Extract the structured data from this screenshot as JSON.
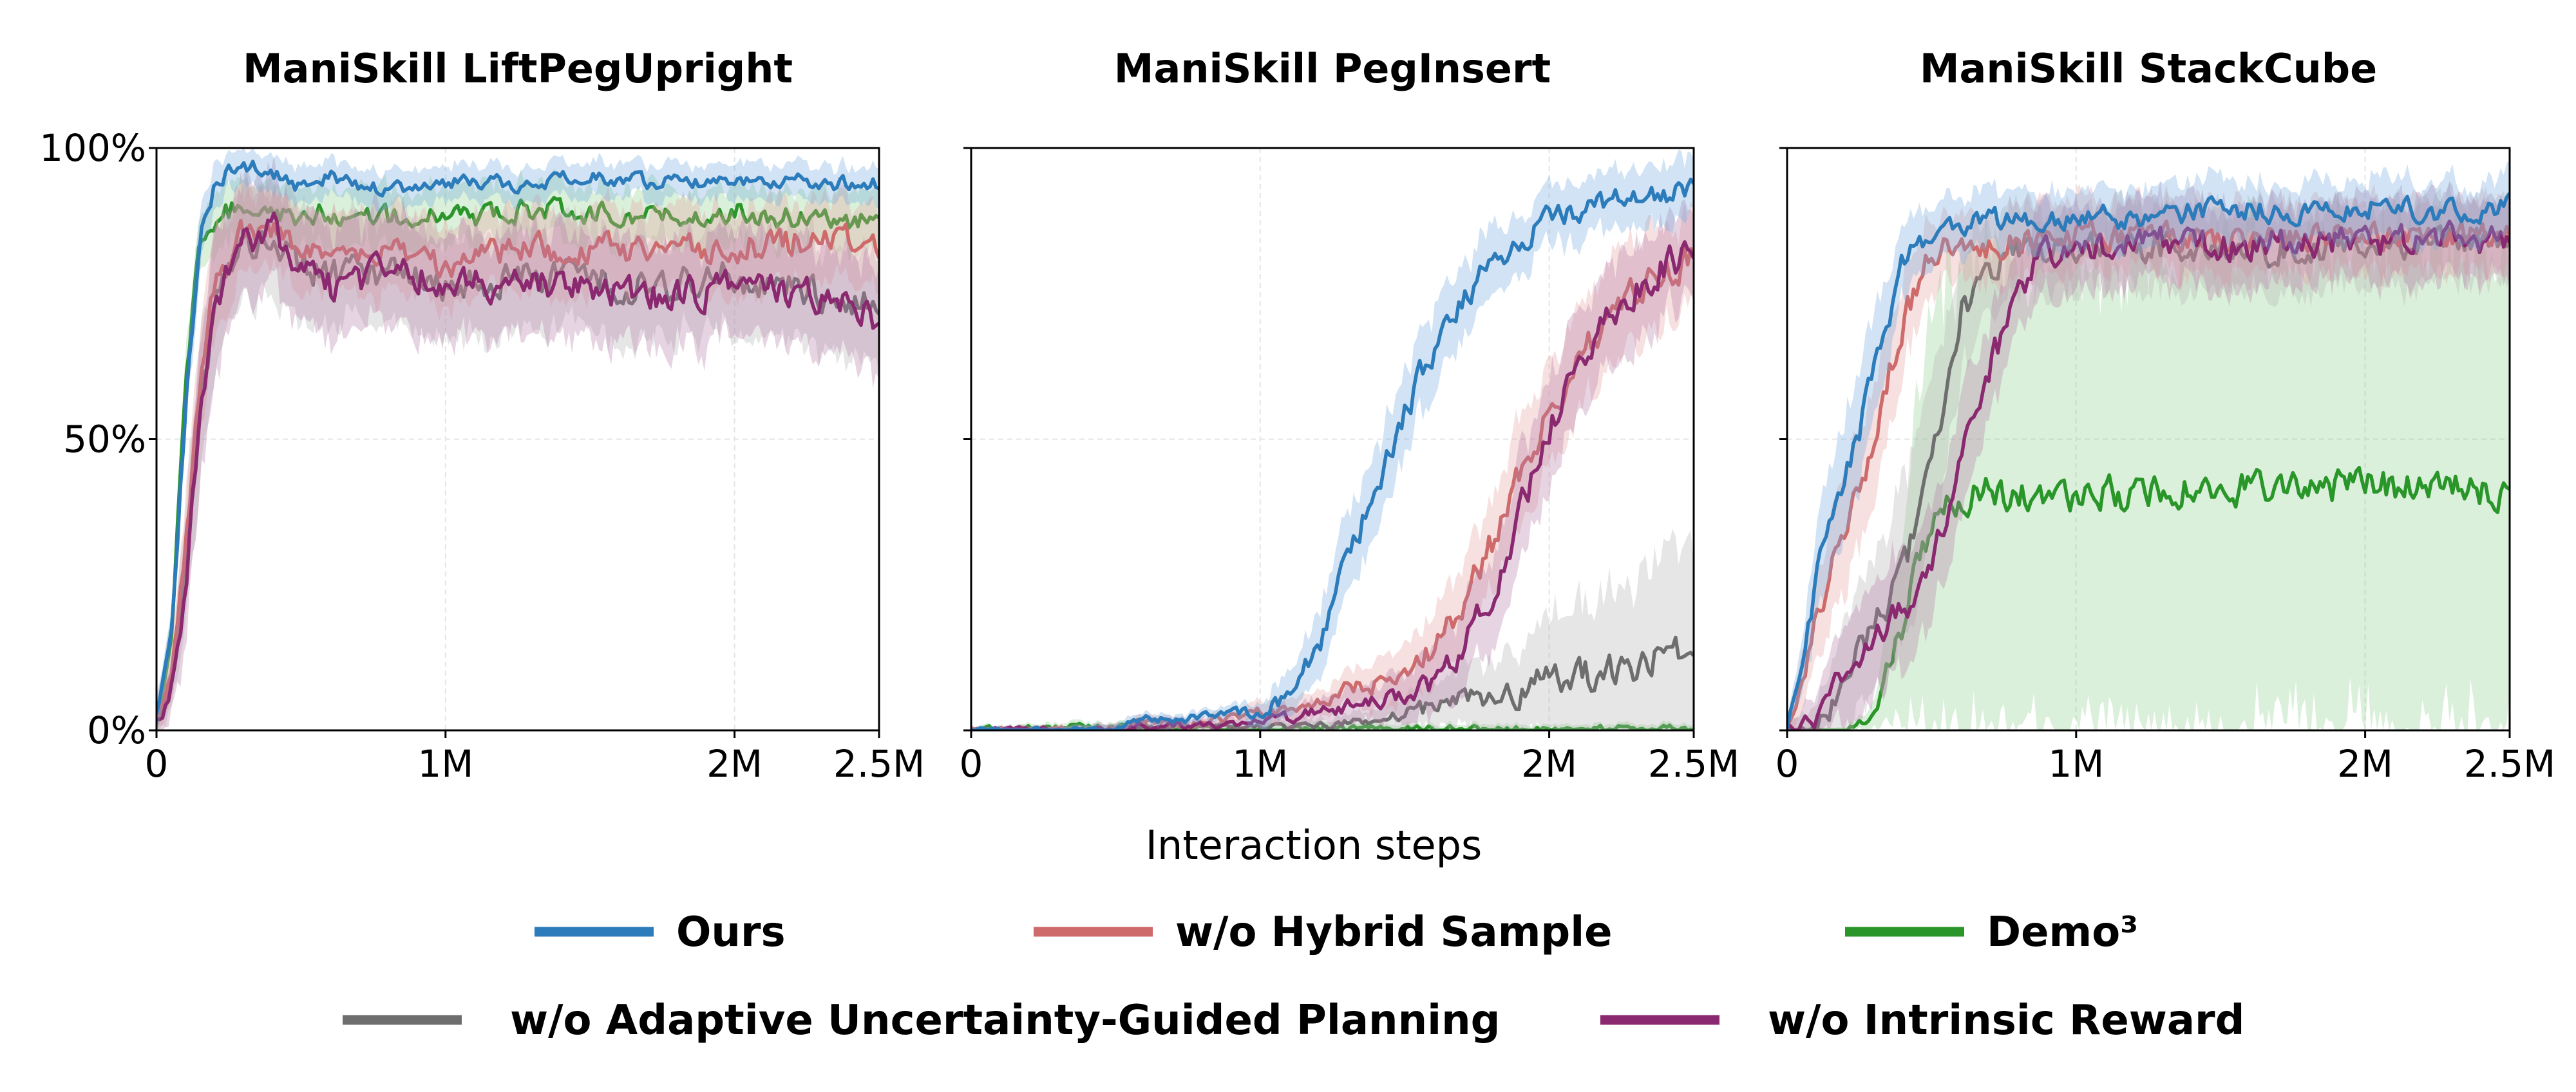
{
  "chart_data": [
    {
      "type": "line",
      "title": "ManiSkill LiftPegUpright",
      "xlabel": "",
      "ylabel": "",
      "xlim": [
        0,
        2.5
      ],
      "ylim": [
        0,
        100
      ],
      "x_ticks": [
        "0",
        "1M",
        "2M",
        "2.5M"
      ],
      "y_ticks": [
        "0%",
        "50%",
        "100%"
      ],
      "grid": true,
      "x": [
        0,
        0.05,
        0.1,
        0.15,
        0.2,
        0.25,
        0.3,
        0.4,
        0.5,
        0.6,
        0.75,
        1.0,
        1.25,
        1.5,
        1.75,
        2.0,
        2.25,
        2.5
      ],
      "series": [
        {
          "name": "Ours",
          "values": [
            2,
            15,
            55,
            85,
            94,
            96,
            97,
            96,
            93,
            95,
            93,
            94,
            94,
            95,
            94,
            95,
            94,
            94
          ],
          "band": [
            3,
            3,
            5,
            5,
            4,
            3,
            3,
            3,
            3,
            3,
            3,
            3,
            3,
            3,
            3,
            3,
            3,
            3
          ]
        },
        {
          "name": "w/o Hybrid Sample",
          "values": [
            2,
            8,
            30,
            60,
            75,
            80,
            85,
            86,
            82,
            81,
            82,
            80,
            82,
            83,
            82,
            83,
            84,
            84
          ],
          "band": [
            3,
            4,
            8,
            10,
            9,
            8,
            7,
            6,
            7,
            7,
            7,
            7,
            7,
            7,
            7,
            7,
            7,
            7
          ]
        },
        {
          "name": "Demo³",
          "values": [
            2,
            15,
            58,
            84,
            88,
            89,
            91,
            90,
            88,
            89,
            88,
            88,
            89,
            89,
            89,
            89,
            88,
            87
          ],
          "band": [
            3,
            4,
            6,
            5,
            5,
            5,
            5,
            5,
            5,
            5,
            5,
            5,
            5,
            5,
            5,
            5,
            5,
            5
          ]
        },
        {
          "name": "w/o Adaptive Uncertainty-Guided Planning",
          "values": [
            2,
            7,
            28,
            55,
            72,
            80,
            83,
            84,
            80,
            78,
            78,
            77,
            78,
            77,
            76,
            78,
            75,
            74
          ],
          "band": [
            3,
            4,
            10,
            12,
            12,
            10,
            10,
            9,
            9,
            9,
            9,
            9,
            9,
            9,
            9,
            9,
            9,
            9
          ]
        },
        {
          "name": "w/o Intrinsic Reward",
          "values": [
            2,
            6,
            25,
            53,
            72,
            80,
            84,
            86,
            80,
            76,
            78,
            78,
            76,
            77,
            74,
            77,
            75,
            71
          ],
          "band": [
            3,
            4,
            10,
            12,
            12,
            10,
            10,
            9,
            9,
            9,
            9,
            9,
            9,
            9,
            9,
            9,
            9,
            9
          ]
        }
      ]
    },
    {
      "type": "line",
      "title": "ManiSkill PegInsert",
      "xlabel": "",
      "ylabel": "",
      "xlim": [
        0,
        2.5
      ],
      "ylim": [
        0,
        100
      ],
      "x_ticks": [
        "0",
        "1M",
        "2M",
        "2.5M"
      ],
      "y_ticks": [
        "0%",
        "50%",
        "100%"
      ],
      "grid": true,
      "x": [
        0,
        0.25,
        0.5,
        0.6,
        0.75,
        0.9,
        1.0,
        1.1,
        1.2,
        1.3,
        1.4,
        1.5,
        1.6,
        1.7,
        1.8,
        1.9,
        2.0,
        2.1,
        2.2,
        2.3,
        2.4,
        2.5
      ],
      "series": [
        {
          "name": "Ours",
          "values": [
            0,
            0,
            0,
            2,
            2,
            3,
            3,
            6,
            14,
            28,
            42,
            55,
            65,
            74,
            80,
            84,
            88,
            89,
            91,
            92,
            92,
            93
          ],
          "band": [
            0.5,
            0.5,
            1,
            1,
            1,
            1,
            2,
            4,
            6,
            7,
            7,
            7,
            7,
            6,
            6,
            5,
            5,
            5,
            5,
            5,
            5,
            5
          ]
        },
        {
          "name": "w/o Hybrid Sample",
          "values": [
            0,
            0,
            0,
            2,
            1,
            2,
            3,
            4,
            5,
            7,
            8,
            10,
            14,
            22,
            32,
            45,
            55,
            63,
            70,
            75,
            78,
            81
          ],
          "band": [
            0.5,
            0.5,
            1,
            1,
            1,
            1,
            2,
            2,
            2,
            3,
            4,
            5,
            6,
            7,
            8,
            9,
            9,
            9,
            9,
            9,
            8,
            8
          ]
        },
        {
          "name": "Demo³",
          "values": [
            0,
            0.5,
            0.5,
            0.5,
            0.3,
            0.3,
            0.3,
            0.3,
            0.3,
            0.3,
            0.3,
            0.3,
            0.3,
            0.3,
            0.3,
            0.3,
            0.3,
            0.3,
            0.3,
            0.3,
            0.3,
            0.3
          ],
          "band": [
            0.5,
            0.8,
            0.8,
            0.8,
            0.8,
            0.8,
            0.8,
            0.8,
            0.8,
            0.8,
            0.8,
            0.8,
            0.8,
            0.8,
            0.8,
            0.8,
            0.8,
            0.8,
            0.8,
            0.8,
            0.8,
            0.8
          ]
        },
        {
          "name": "w/o Adaptive Uncertainty-Guided Planning",
          "values": [
            0,
            0,
            0,
            0.5,
            0.5,
            0.5,
            0.5,
            0.5,
            1,
            1.5,
            2,
            3,
            4,
            5,
            6,
            7,
            8,
            9,
            10,
            11,
            13,
            15
          ],
          "band": [
            0.3,
            0.3,
            0.5,
            0.5,
            0.5,
            0.5,
            0.5,
            1,
            1,
            1.5,
            2,
            3,
            4,
            5,
            6,
            8,
            10,
            12,
            14,
            15,
            17,
            18
          ]
        },
        {
          "name": "w/o Intrinsic Reward",
          "values": [
            0,
            0,
            0,
            1,
            1,
            1,
            2,
            2,
            3,
            4,
            5,
            6,
            8,
            14,
            24,
            38,
            52,
            62,
            70,
            76,
            80,
            82
          ],
          "band": [
            0.5,
            0.5,
            1,
            1,
            1,
            1,
            1,
            2,
            2,
            3,
            3,
            4,
            6,
            7,
            8,
            9,
            9,
            9,
            9,
            8,
            8,
            8
          ]
        }
      ]
    },
    {
      "type": "line",
      "title": "ManiSkill StackCube",
      "xlabel": "",
      "ylabel": "",
      "xlim": [
        0,
        2.5
      ],
      "ylim": [
        0,
        100
      ],
      "x_ticks": [
        "0",
        "1M",
        "2M",
        "2.5M"
      ],
      "y_ticks": [
        "0%",
        "50%",
        "100%"
      ],
      "grid": true,
      "x": [
        0,
        0.1,
        0.2,
        0.3,
        0.4,
        0.5,
        0.6,
        0.7,
        0.8,
        0.9,
        1.0,
        1.25,
        1.5,
        1.75,
        2.0,
        2.25,
        2.5
      ],
      "series": [
        {
          "name": "Ours",
          "values": [
            0,
            25,
            42,
            62,
            80,
            86,
            86,
            88,
            87,
            88,
            88,
            88,
            90,
            89,
            90,
            89,
            90
          ],
          "band": [
            1,
            8,
            10,
            9,
            6,
            5,
            5,
            5,
            5,
            5,
            5,
            5,
            5,
            5,
            5,
            5,
            5
          ]
        },
        {
          "name": "w/o Hybrid Sample",
          "values": [
            0,
            18,
            35,
            50,
            70,
            82,
            84,
            83,
            84,
            84,
            85,
            85,
            84,
            85,
            85,
            85,
            86
          ],
          "band": [
            1,
            8,
            10,
            10,
            8,
            6,
            6,
            6,
            6,
            6,
            6,
            6,
            6,
            6,
            6,
            6,
            6
          ]
        },
        {
          "name": "Demo³",
          "values": [
            0,
            0,
            0,
            2,
            18,
            36,
            40,
            41,
            40,
            41,
            40,
            41,
            42,
            41,
            42,
            42,
            41
          ],
          "band": [
            0.5,
            0.5,
            0.5,
            2,
            18,
            36,
            40,
            41,
            40,
            41,
            40,
            41,
            42,
            41,
            42,
            42,
            41
          ]
        },
        {
          "name": "w/o Adaptive Uncertainty-Guided Planning",
          "values": [
            0,
            0,
            8,
            18,
            26,
            45,
            72,
            80,
            82,
            82,
            83,
            83,
            82,
            83,
            83,
            84,
            84
          ],
          "band": [
            1,
            4,
            10,
            12,
            14,
            14,
            10,
            8,
            7,
            7,
            7,
            7,
            7,
            7,
            7,
            7,
            7
          ]
        },
        {
          "name": "w/o Intrinsic Reward",
          "values": [
            0,
            2,
            10,
            16,
            20,
            28,
            45,
            62,
            76,
            82,
            83,
            84,
            83,
            84,
            84,
            84,
            85
          ],
          "band": [
            1,
            4,
            8,
            10,
            10,
            10,
            10,
            8,
            7,
            7,
            7,
            7,
            7,
            7,
            7,
            7,
            7
          ]
        }
      ]
    }
  ],
  "figure": {
    "xlabel": "Interaction steps",
    "legend_placement": "bottom",
    "series_colors": {
      "Ours": "#2c7bba",
      "w/o Hybrid Sample": "#cf6a6a",
      "Demo³": "#2a962a",
      "w/o Adaptive Uncertainty-Guided Planning": "#6e6e6e",
      "w/o Intrinsic Reward": "#8a2870"
    },
    "band_colors": {
      "Ours": "#6fa8dc",
      "w/o Hybrid Sample": "#e7a0a0",
      "Demo³": "#8bcf8b",
      "w/o Adaptive Uncertainty-Guided Planning": "#b0b0b0",
      "w/o Intrinsic Reward": "#b57aa5"
    },
    "draw_order": [
      "Demo³",
      "w/o Adaptive Uncertainty-Guided Planning",
      "w/o Hybrid Sample",
      "w/o Intrinsic Reward",
      "Ours"
    ],
    "legend": [
      [
        "Ours",
        "w/o Hybrid Sample",
        "Demo³"
      ],
      [
        "w/o Adaptive Uncertainty-Guided Planning",
        "w/o Intrinsic Reward"
      ]
    ]
  }
}
